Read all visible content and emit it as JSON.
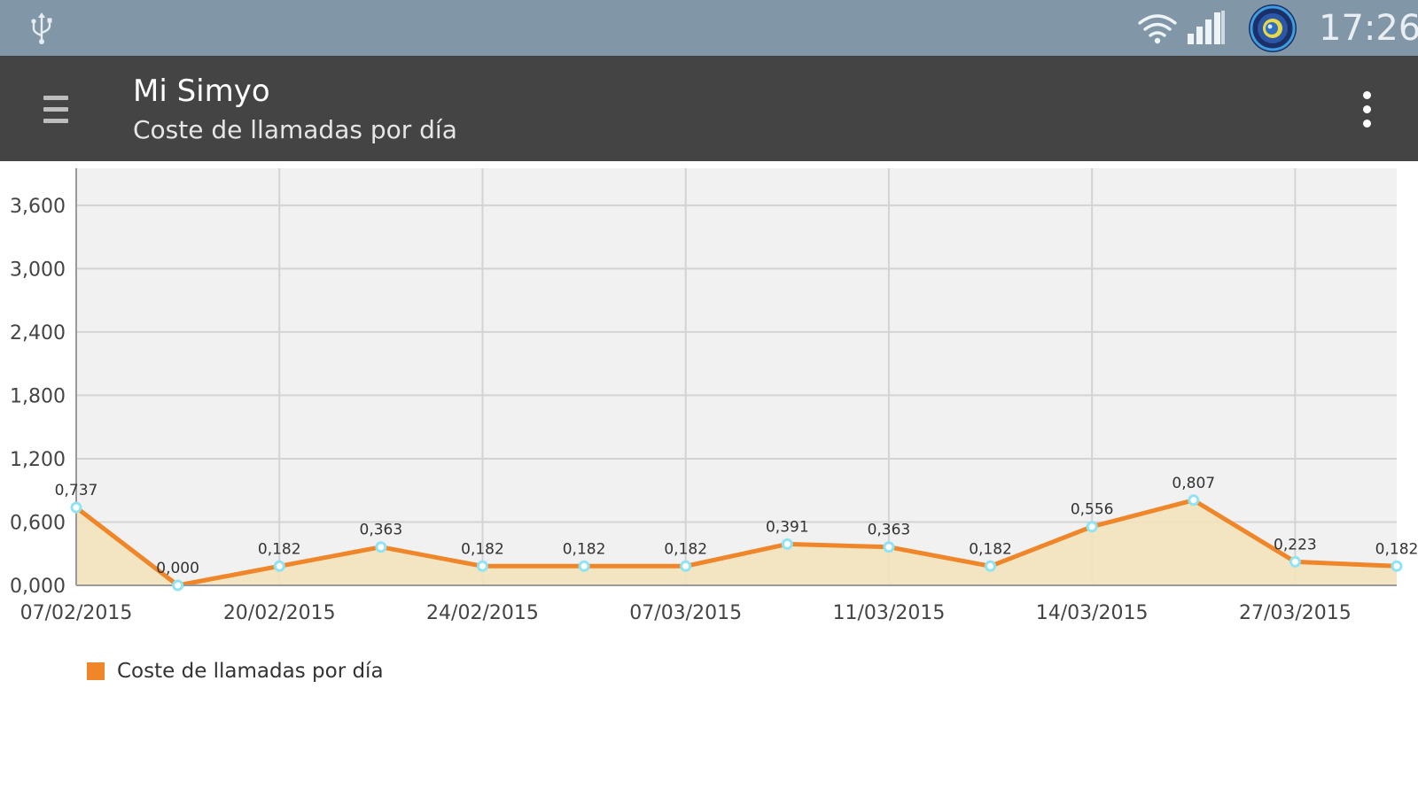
{
  "status_bar": {
    "time": "17:26",
    "icons": [
      "usb-icon",
      "wifi-icon",
      "signal-icon",
      "app-notification-icon"
    ]
  },
  "app_bar": {
    "title": "Mi Simyo",
    "subtitle": "Coste de llamadas por día",
    "icons": [
      "menu-icon",
      "overflow-menu-icon"
    ]
  },
  "colors": {
    "status_bar": "#8197a8",
    "app_bar": "#444444",
    "line": "#f0862a",
    "area_fill": "#f3e2bd",
    "plot_background": "#f1f1f1",
    "marker": "#8fe3f2"
  },
  "chart_data": {
    "type": "area",
    "y_tick_labels": [
      "0,000",
      "0,600",
      "1,200",
      "1,800",
      "2,400",
      "3,000",
      "3,600"
    ],
    "ylim": [
      0,
      3.8
    ],
    "y_ticks": [
      0,
      0.6,
      1.2,
      1.8,
      2.4,
      3.0,
      3.6
    ],
    "x_tick_labels": [
      "07/02/2015",
      "20/02/2015",
      "24/02/2015",
      "07/03/2015",
      "11/03/2015",
      "14/03/2015",
      "27/03/2015"
    ],
    "grid": true,
    "legend_position": "bottom-left",
    "series": [
      {
        "name": "Coste de llamadas por día",
        "values": [
          0.737,
          0.0,
          0.182,
          0.363,
          0.182,
          0.182,
          0.182,
          0.391,
          0.363,
          0.182,
          0.556,
          0.807,
          0.223,
          0.182
        ],
        "labels": [
          "0,737",
          "0,000",
          "0,182",
          "0,363",
          "0,182",
          "0,182",
          "0,182",
          "0,391",
          "0,363",
          "0,182",
          "0,556",
          "0,807",
          "0,223",
          "0,182"
        ]
      }
    ]
  }
}
